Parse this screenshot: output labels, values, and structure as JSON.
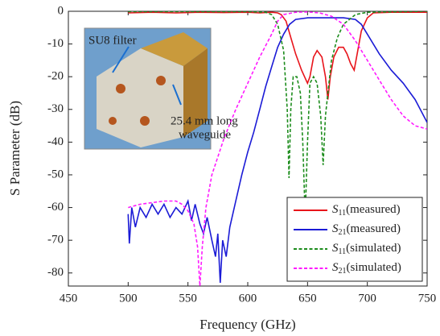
{
  "chart_data": {
    "type": "line",
    "xlabel": "Frequency (GHz)",
    "ylabel": "S Parameter (dB)",
    "xlim": [
      450,
      750
    ],
    "ylim": [
      -84,
      0
    ],
    "xticks": [
      450,
      500,
      550,
      600,
      650,
      700,
      750
    ],
    "yticks": [
      0,
      -10,
      -20,
      -30,
      -40,
      -50,
      -60,
      -70,
      -80
    ],
    "legend": "lower right",
    "annotations": [
      "SU8 filter",
      "25.4 mm long",
      "waveguide"
    ],
    "series": [
      {
        "name": "S11(measured)",
        "color": "#e8141b",
        "linestyle": "solid",
        "x": [
          500,
          520,
          540,
          560,
          580,
          600,
          610,
          620,
          625,
          628,
          632,
          636,
          640,
          645,
          650,
          652,
          655,
          658,
          662,
          665,
          667,
          669,
          672,
          676,
          680,
          683,
          686,
          689,
          692,
          695,
          700,
          705,
          720,
          750
        ],
        "values": [
          -0.5,
          -0.3,
          -0.5,
          -0.3,
          -0.4,
          -0.3,
          -0.5,
          -0.3,
          -0.5,
          -1,
          -3,
          -8,
          -13,
          -18,
          -22,
          -20,
          -14,
          -12,
          -14,
          -20,
          -27,
          -20,
          -14,
          -11,
          -11,
          -13,
          -16,
          -18,
          -12,
          -6,
          -2,
          -0.5,
          -0.3,
          -0.3
        ]
      },
      {
        "name": "S21(measured)",
        "color": "#1b1bd6",
        "linestyle": "solid",
        "x": [
          500,
          501,
          503,
          506,
          510,
          515,
          520,
          525,
          530,
          535,
          540,
          545,
          550,
          553,
          556,
          560,
          563,
          566,
          570,
          573,
          575,
          577,
          579,
          582,
          585,
          590,
          595,
          600,
          605,
          610,
          615,
          620,
          625,
          630,
          635,
          640,
          650,
          660,
          670,
          680,
          690,
          695,
          700,
          710,
          720,
          730,
          740,
          750
        ],
        "values": [
          -62,
          -71,
          -60,
          -66,
          -60,
          -63,
          -59,
          -62,
          -59,
          -63,
          -60,
          -62,
          -58,
          -64,
          -59,
          -65,
          -68,
          -63,
          -70,
          -75,
          -68,
          -83,
          -70,
          -75,
          -66,
          -58,
          -50,
          -43,
          -37,
          -30,
          -23,
          -17,
          -11,
          -7,
          -4,
          -2.5,
          -2,
          -2,
          -2,
          -2,
          -2.5,
          -4,
          -7,
          -13,
          -18,
          -22,
          -27,
          -34
        ]
      },
      {
        "name": "S11(simulated)",
        "color": "#1c8c1c",
        "linestyle": "dashed",
        "x": [
          500,
          550,
          600,
          615,
          620,
          625,
          630,
          633,
          634.5,
          636,
          638,
          641,
          644,
          646,
          648,
          650,
          652,
          655,
          658,
          661,
          663,
          665,
          667,
          670,
          675,
          680,
          690,
          700,
          750
        ],
        "values": [
          -0.1,
          -0.1,
          -0.1,
          -0.3,
          -1,
          -4,
          -12,
          -30,
          -51,
          -30,
          -20,
          -20,
          -25,
          -40,
          -63,
          -40,
          -22,
          -20,
          -22,
          -32,
          -47,
          -32,
          -25,
          -15,
          -8,
          -4,
          -1,
          -0.3,
          0
        ]
      },
      {
        "name": "S21(simulated)",
        "color": "#ff1aff",
        "linestyle": "dashed",
        "x": [
          500,
          510,
          520,
          530,
          540,
          545,
          550,
          555,
          558,
          560,
          562,
          565,
          570,
          580,
          590,
          600,
          610,
          620,
          625,
          630,
          640,
          650,
          660,
          670,
          680,
          690,
          700,
          710,
          720,
          730,
          740,
          750
        ],
        "values": [
          -60,
          -59,
          -58.5,
          -58,
          -58,
          -59,
          -61,
          -65,
          -72,
          -84,
          -72,
          -60,
          -50,
          -39,
          -30,
          -22,
          -14,
          -7,
          -3,
          -1,
          -0.3,
          -0.2,
          -0.5,
          -1.5,
          -4,
          -9,
          -15,
          -21,
          -27,
          -32,
          -35,
          -36
        ]
      }
    ]
  }
}
